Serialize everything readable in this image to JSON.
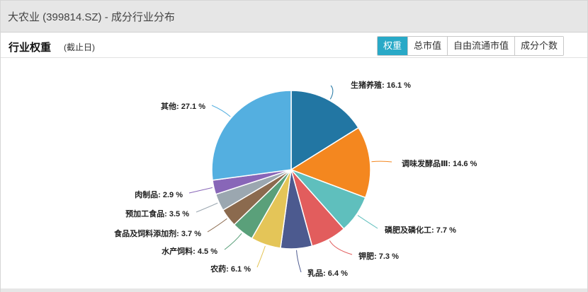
{
  "window": {
    "title": "大农业 (399814.SZ) - 成分行业分布"
  },
  "section": {
    "title": "行业权重",
    "date_label": "(截止日)"
  },
  "tabs": [
    {
      "label": "权重",
      "active": true
    },
    {
      "label": "总市值",
      "active": false
    },
    {
      "label": "自由流通市值",
      "active": false
    },
    {
      "label": "成分个数",
      "active": false
    }
  ],
  "chart_data": {
    "type": "pie",
    "title": "",
    "slices": [
      {
        "label": "生猪养殖",
        "value": 16.1,
        "color": "#2276a3"
      },
      {
        "label": "调味发酵品Ⅲ",
        "value": 14.6,
        "color": "#f4871f"
      },
      {
        "label": "磷肥及磷化工",
        "value": 7.7,
        "color": "#5fbfbd"
      },
      {
        "label": "钾肥",
        "value": 7.3,
        "color": "#e25d5d"
      },
      {
        "label": "乳品",
        "value": 6.4,
        "color": "#4c5a8f"
      },
      {
        "label": "农药",
        "value": 6.1,
        "color": "#e4c558"
      },
      {
        "label": "水产饲料",
        "value": 4.5,
        "color": "#5aa07a"
      },
      {
        "label": "食品及饲料添加剂",
        "value": 3.7,
        "color": "#8b6a4e"
      },
      {
        "label": "预加工食品",
        "value": 3.5,
        "color": "#9ba7b0"
      },
      {
        "label": "肉制品",
        "value": 2.9,
        "color": "#8866b8"
      },
      {
        "label": "其他",
        "value": 27.1,
        "color": "#54afe0"
      }
    ],
    "label_format": "{label}: {value} %"
  }
}
